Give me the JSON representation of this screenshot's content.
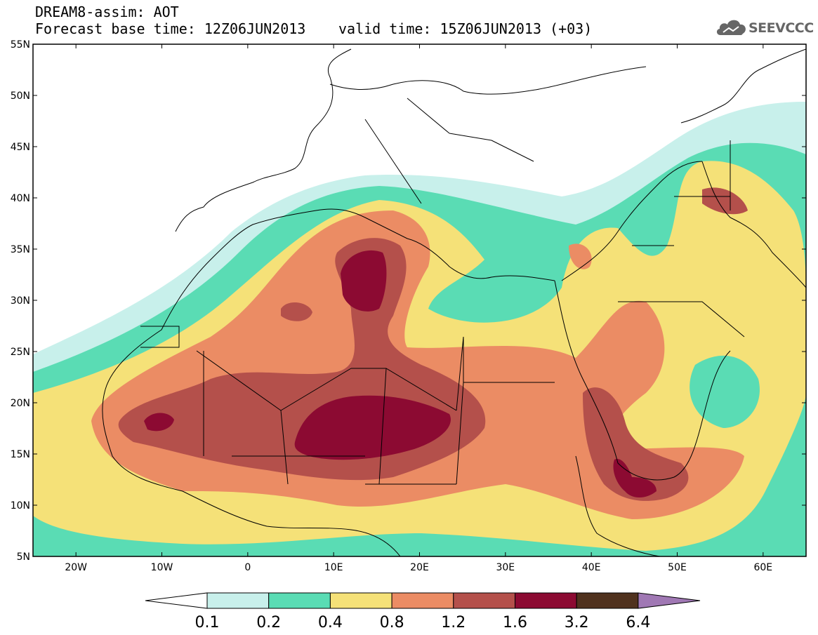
{
  "title": {
    "line1": "DREAM8-assim: AOT",
    "line2": "Forecast base time: 12Z06JUN2013",
    "line3": "valid time: 15Z06JUN2013 (+03)"
  },
  "logo": {
    "text": "SEEVCCC",
    "icon": "cloud-icon"
  },
  "map": {
    "lat_labels": [
      "55N",
      "50N",
      "45N",
      "40N",
      "35N",
      "30N",
      "25N",
      "20N",
      "15N",
      "10N",
      "5N"
    ],
    "lon_labels": [
      "20W",
      "10W",
      "0",
      "10E",
      "20E",
      "30E",
      "40E",
      "50E",
      "60E"
    ],
    "lat_range": [
      5,
      55
    ],
    "lon_range": [
      -25,
      65
    ]
  },
  "colorbar": {
    "ticks": [
      "0.1",
      "0.2",
      "0.4",
      "0.8",
      "1.2",
      "1.6",
      "3.2",
      "6.4"
    ],
    "colors": [
      "#ffffff",
      "#c8f0eb",
      "#5adcb4",
      "#f5e178",
      "#eb8c64",
      "#b4504b",
      "#8c0a32",
      "#50321e",
      "#a078b4"
    ]
  }
}
